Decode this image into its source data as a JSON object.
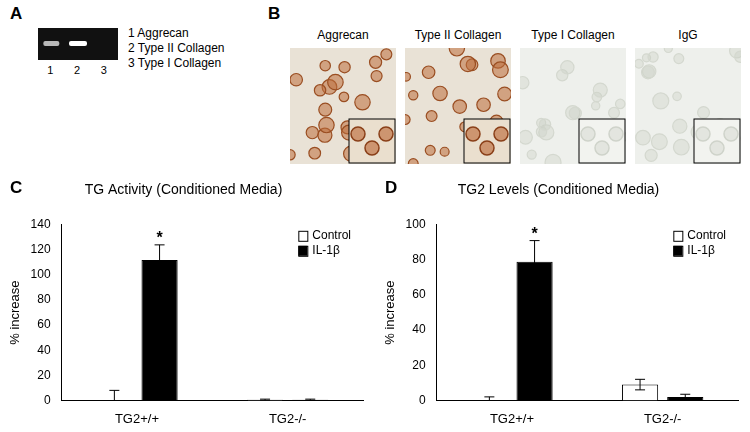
{
  "figure": {
    "panel_a": {
      "label": "A",
      "lanes": [
        {
          "number": "1",
          "name": "Aggrecan"
        },
        {
          "number": "2",
          "name": "Type II Collagen"
        },
        {
          "number": "3",
          "name": "Type I Collagen"
        }
      ]
    },
    "panel_b": {
      "label": "B",
      "images": [
        "Aggrecan",
        "Type II Collagen",
        "Type I Collagen",
        "IgG"
      ]
    }
  },
  "chart_data": [
    {
      "panel": "C",
      "type": "bar",
      "title": "TG Activity (Conditioned Media)",
      "y_label": "% increase",
      "categories": [
        "TG2+/+",
        "TG2-/-"
      ],
      "series": [
        {
          "name": "Control",
          "color": "#ffffff",
          "values": [
            0,
            0.5
          ],
          "errors": [
            8,
            0.5
          ]
        },
        {
          "name": "IL-1β",
          "color": "#000000",
          "values": [
            112,
            0.5
          ],
          "errors": [
            12,
            0.5
          ]
        }
      ],
      "ylim": [
        0,
        140
      ],
      "yticks": [
        0,
        20,
        40,
        60,
        80,
        100,
        120,
        140
      ],
      "grid": false,
      "legend": "upper right",
      "annotations": [
        {
          "text": "*",
          "category": "TG2+/+",
          "series": "IL-1β"
        }
      ]
    },
    {
      "panel": "D",
      "type": "bar",
      "title": "TG2 Levels (Conditioned Media)",
      "y_label": "% increase",
      "categories": [
        "TG2+/+",
        "TG2-/-"
      ],
      "series": [
        {
          "name": "Control",
          "color": "#ffffff",
          "values": [
            0,
            9
          ],
          "errors": [
            2,
            3
          ]
        },
        {
          "name": "IL-1β",
          "color": "#000000",
          "values": [
            79,
            2
          ],
          "errors": [
            12,
            1.5
          ]
        }
      ],
      "ylim": [
        0,
        100
      ],
      "yticks": [
        0,
        20,
        40,
        60,
        80,
        100
      ],
      "grid": false,
      "legend": "upper right",
      "annotations": [
        {
          "text": "*",
          "category": "TG2+/+",
          "series": "IL-1β"
        }
      ]
    }
  ]
}
